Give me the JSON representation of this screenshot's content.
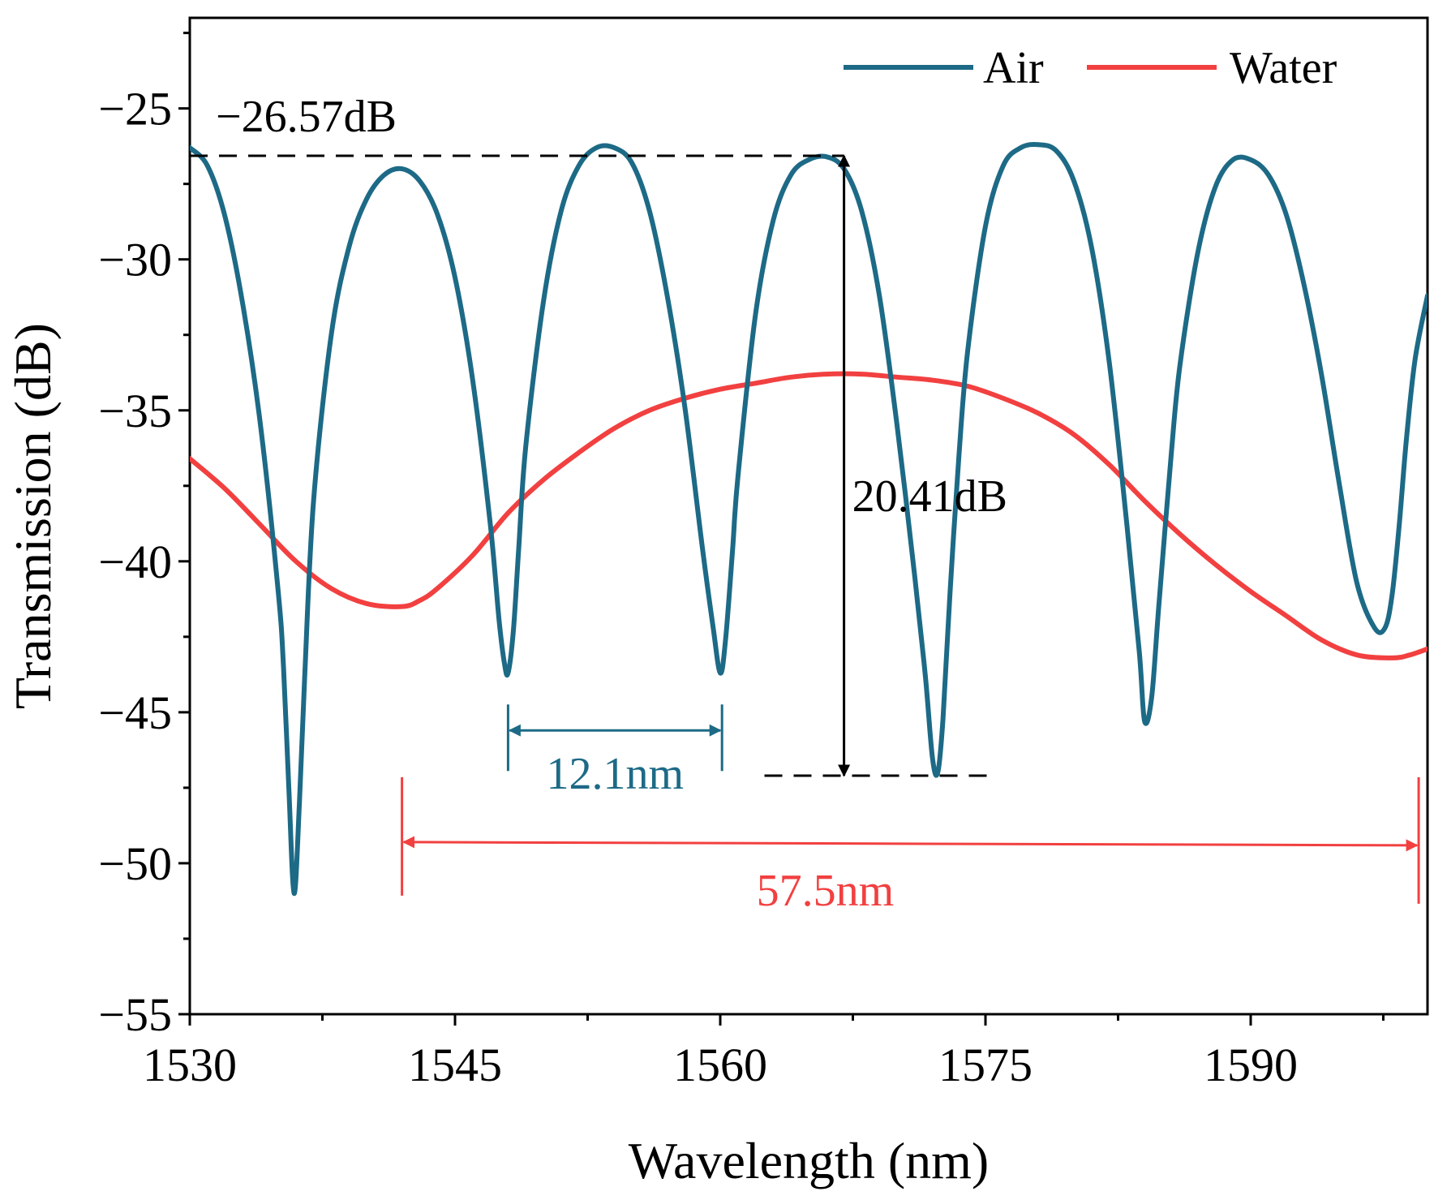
{
  "chart_data": {
    "type": "line",
    "title": "",
    "xlabel": "Wavelength (nm)",
    "ylabel": "Transmission (dB)",
    "xlim": [
      1530,
      1600
    ],
    "ylim": [
      -55,
      -22
    ],
    "xticks": [
      1530,
      1545,
      1560,
      1575,
      1590
    ],
    "yticks": [
      -25,
      -30,
      -35,
      -40,
      -45,
      -50,
      -55
    ],
    "xtick_labels": [
      "1530",
      "1545",
      "1560",
      "1575",
      "1590"
    ],
    "ytick_labels": [
      "−25",
      "−30",
      "−35",
      "−40",
      "−45",
      "−50",
      "−55"
    ],
    "legend_position": "top-right",
    "series": [
      {
        "name": "Air",
        "color": "#1d6a86",
        "x": [
          1530.0,
          1531.0,
          1532.0,
          1533.0,
          1534.0,
          1535.0,
          1535.3,
          1535.6,
          1535.9,
          1536.2,
          1536.5,
          1537.0,
          1538.0,
          1539.0,
          1540.0,
          1541.0,
          1542.0,
          1543.0,
          1544.0,
          1545.0,
          1546.0,
          1547.0,
          1547.5,
          1547.8,
          1548.0,
          1548.3,
          1548.6,
          1549.0,
          1550.0,
          1551.0,
          1552.0,
          1553.0,
          1554.0,
          1555.0,
          1556.0,
          1557.0,
          1558.0,
          1559.0,
          1559.6,
          1560.0,
          1560.3,
          1560.7,
          1561.0,
          1562.0,
          1563.0,
          1564.0,
          1565.0,
          1566.0,
          1567.0,
          1568.0,
          1569.0,
          1570.0,
          1571.0,
          1571.6,
          1572.0,
          1572.3,
          1572.6,
          1573.0,
          1573.5,
          1574.0,
          1575.0,
          1576.0,
          1577.0,
          1578.0,
          1579.0,
          1580.0,
          1581.0,
          1582.0,
          1583.0,
          1583.7,
          1584.0,
          1584.4,
          1584.8,
          1585.5,
          1586.0,
          1587.0,
          1588.0,
          1589.0,
          1590.0,
          1591.0,
          1592.0,
          1593.0,
          1594.0,
          1595.0,
          1596.0,
          1597.0,
          1597.6,
          1598.0,
          1598.4,
          1598.8,
          1599.3,
          1600.0
        ],
        "y": [
          -26.3,
          -26.9,
          -28.6,
          -31.5,
          -35.5,
          -41.0,
          -43.5,
          -47.5,
          -51.0,
          -48.0,
          -43.8,
          -38.0,
          -32.5,
          -29.6,
          -28.0,
          -27.2,
          -27.0,
          -27.4,
          -28.5,
          -30.6,
          -34.0,
          -38.8,
          -42.0,
          -43.4,
          -43.7,
          -42.3,
          -39.6,
          -36.2,
          -31.4,
          -28.4,
          -26.9,
          -26.3,
          -26.3,
          -26.8,
          -28.4,
          -31.2,
          -34.9,
          -39.6,
          -42.2,
          -43.7,
          -42.6,
          -39.6,
          -37.2,
          -31.8,
          -28.7,
          -27.2,
          -26.7,
          -26.6,
          -27.0,
          -28.4,
          -31.2,
          -35.5,
          -40.5,
          -43.8,
          -46.5,
          -47.0,
          -45.2,
          -41.0,
          -36.5,
          -33.0,
          -28.9,
          -26.9,
          -26.3,
          -26.2,
          -26.4,
          -27.4,
          -29.6,
          -33.4,
          -38.8,
          -43.0,
          -45.3,
          -44.5,
          -41.5,
          -36.5,
          -33.5,
          -29.8,
          -27.6,
          -26.7,
          -26.7,
          -27.2,
          -28.5,
          -30.8,
          -33.8,
          -37.4,
          -40.7,
          -42.2,
          -42.2,
          -41.1,
          -38.8,
          -36.0,
          -33.3,
          -31.2
        ]
      },
      {
        "name": "Water",
        "color": "#f24040",
        "x": [
          1530,
          1532,
          1534,
          1536,
          1538,
          1540,
          1542,
          1543,
          1544,
          1546,
          1548,
          1550,
          1552,
          1554,
          1556,
          1558,
          1560,
          1562,
          1564,
          1566,
          1568,
          1570,
          1572,
          1574,
          1576,
          1578,
          1580,
          1582,
          1584,
          1586,
          1588,
          1590,
          1592,
          1594,
          1596,
          1598,
          1599,
          1600
        ],
        "y": [
          -36.6,
          -37.6,
          -38.8,
          -40.0,
          -40.9,
          -41.4,
          -41.5,
          -41.3,
          -40.9,
          -39.8,
          -38.4,
          -37.3,
          -36.4,
          -35.6,
          -35.0,
          -34.6,
          -34.3,
          -34.1,
          -33.9,
          -33.8,
          -33.8,
          -33.9,
          -34.0,
          -34.2,
          -34.6,
          -35.1,
          -35.8,
          -36.8,
          -38.0,
          -39.1,
          -40.1,
          -41.0,
          -41.8,
          -42.6,
          -43.1,
          -43.2,
          -43.1,
          -42.9
        ]
      }
    ],
    "annotations": {
      "peak_label": "−26.57dB",
      "extinction_label": "20.41dB",
      "air_fsr_label": "12.1nm",
      "water_fsr_label": "57.5nm",
      "peak_level": -26.57,
      "dip_level": -47.1,
      "extinction_x": 1567.0,
      "air_fsr": [
        1548.0,
        1560.1
      ],
      "water_fsr": [
        1542.0,
        1599.5
      ],
      "air_fsr_y": -45.6,
      "water_fsr_y": -49.3
    }
  }
}
